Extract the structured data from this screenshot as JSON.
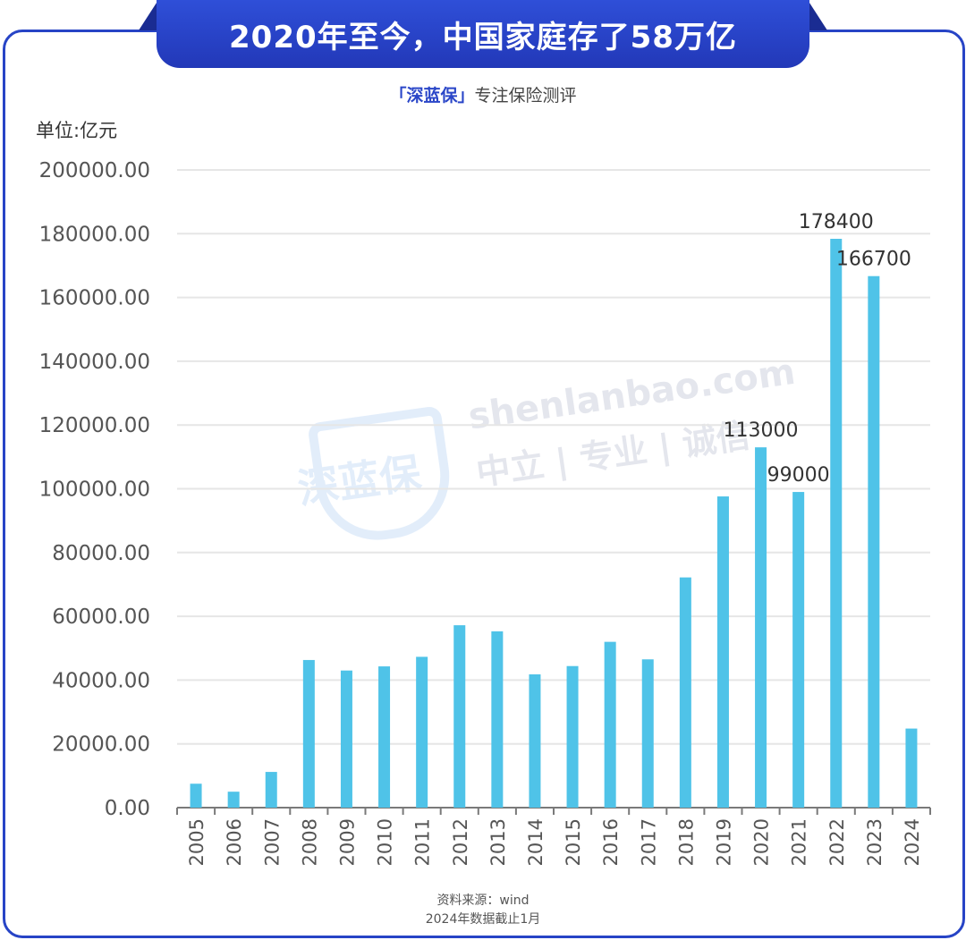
{
  "header": {
    "title": "2020年至今，中国家庭存了58万亿",
    "subtitle_brand": "「深蓝保」",
    "subtitle_rest": "专注保险测评"
  },
  "watermark": {
    "logo": "深蓝保",
    "url": "shenlanbao.com",
    "slogan": "中立 | 专业 | 诚信"
  },
  "footer": {
    "source": "资料来源：wind",
    "note": "2024年数据截止1月"
  },
  "colors": {
    "bar": "#4fc3e8",
    "grid": "#e6e6e6",
    "axis": "#7a7a7a",
    "text": "#555555",
    "brand": "#2744c6"
  },
  "chart_data": {
    "type": "bar",
    "unit_label": "单位:亿元",
    "categories": [
      "2005",
      "2006",
      "2007",
      "2008",
      "2009",
      "2010",
      "2011",
      "2012",
      "2013",
      "2014",
      "2015",
      "2016",
      "2017",
      "2018",
      "2019",
      "2020",
      "2021",
      "2022",
      "2023",
      "2024"
    ],
    "values": [
      7500,
      5000,
      11200,
      46300,
      43000,
      44300,
      47300,
      57200,
      55300,
      41800,
      44400,
      52000,
      46500,
      72200,
      97600,
      113000,
      99000,
      178400,
      166700,
      24800
    ],
    "data_labels": [
      "",
      "",
      "",
      "",
      "",
      "",
      "",
      "",
      "",
      "",
      "",
      "",
      "",
      "",
      "",
      "113000",
      "99000",
      "178400",
      "166700",
      ""
    ],
    "y_ticks": [
      "0.00",
      "20000.00",
      "40000.00",
      "60000.00",
      "80000.00",
      "100000.00",
      "120000.00",
      "140000.00",
      "160000.00",
      "180000.00",
      "200000.00"
    ],
    "ylim": [
      0,
      200000
    ],
    "grid": true,
    "legend": "none"
  }
}
